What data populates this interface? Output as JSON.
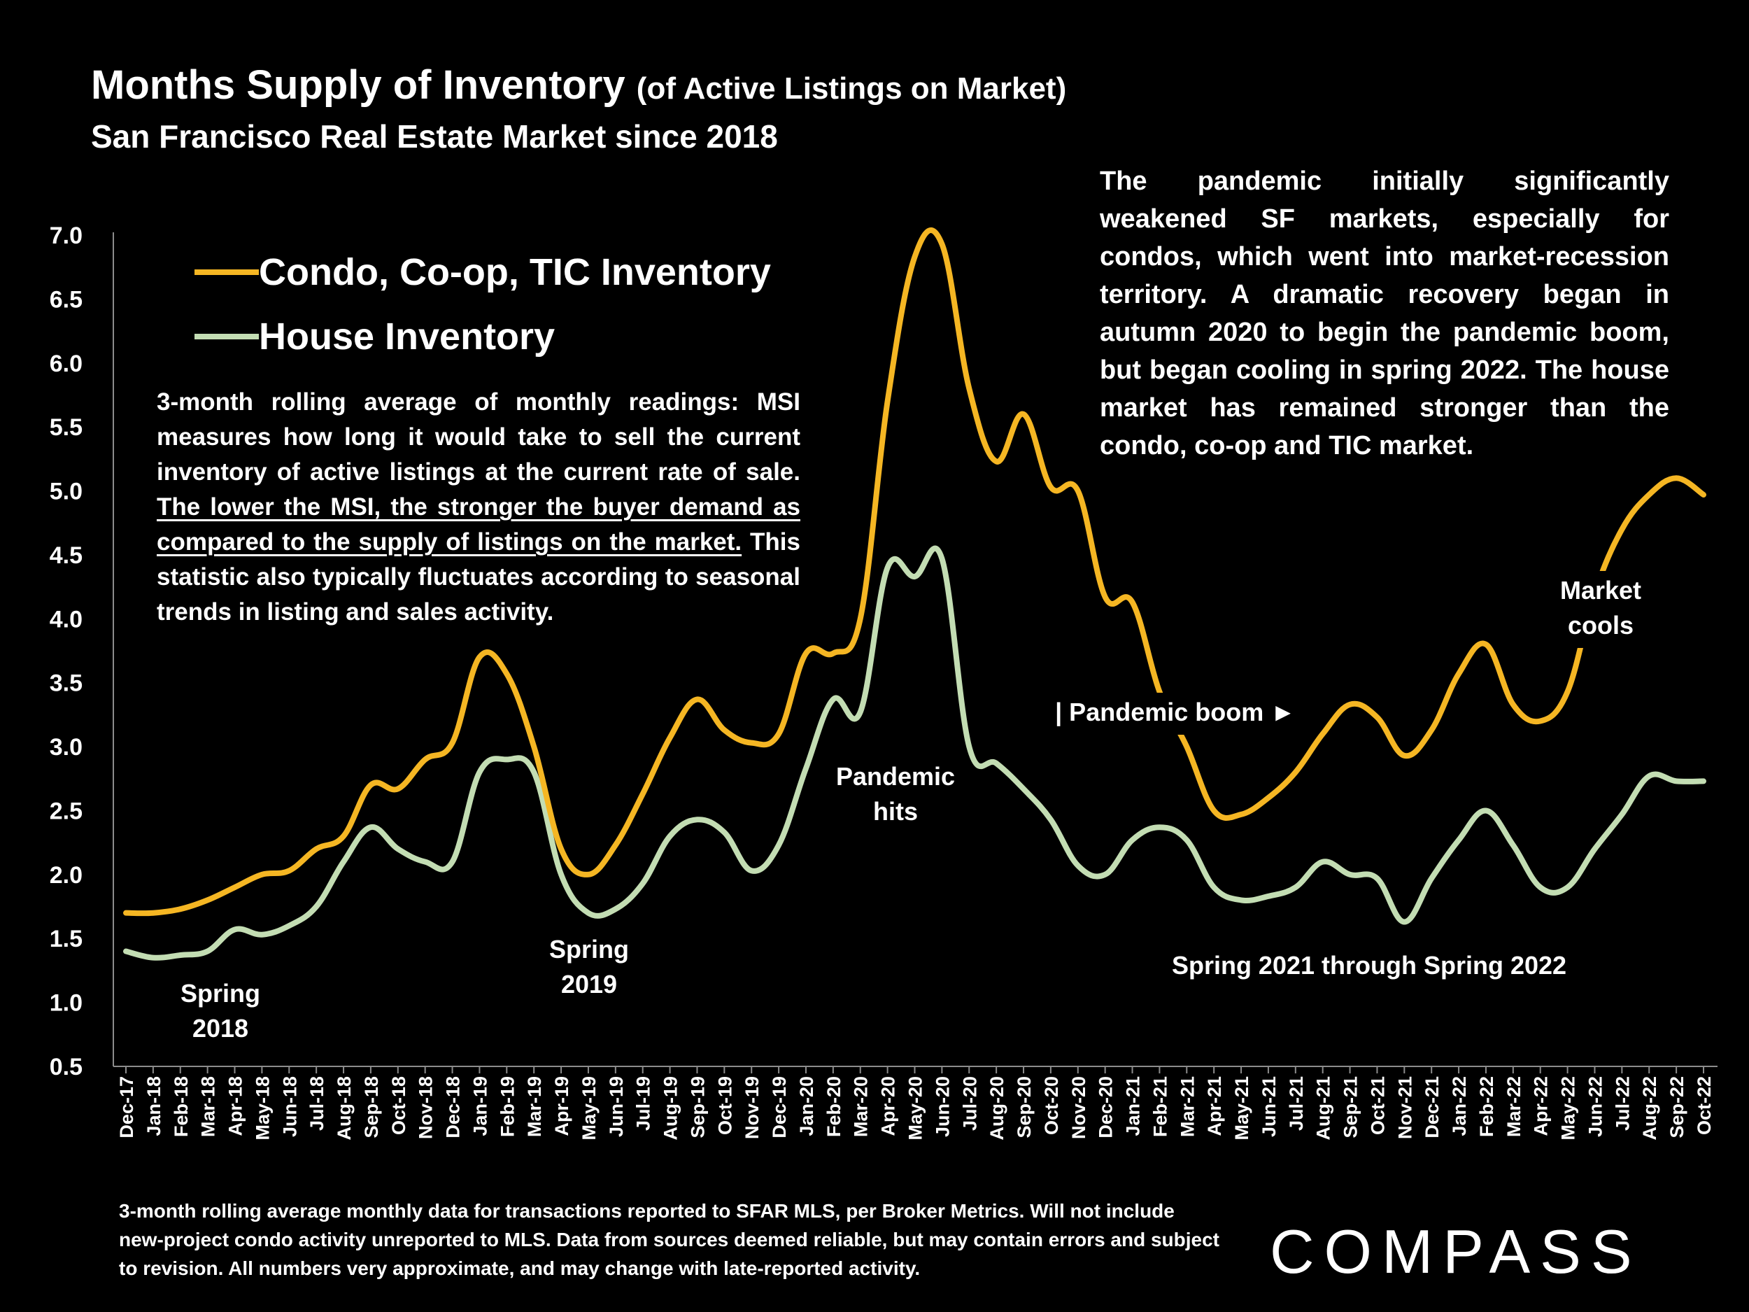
{
  "title": {
    "main": "Months Supply of Inventory",
    "paren": "(of Active Listings on Market)",
    "subtitle": "San Francisco Real Estate Market since 2018"
  },
  "legend": [
    {
      "label": "Condo, Co-op, TIC Inventory",
      "color": "#F5B623"
    },
    {
      "label": "House Inventory",
      "color": "#C3DDB3"
    }
  ],
  "explanation": {
    "part1": "3-month rolling average of monthly readings: MSI measures how long it would take to sell the current inventory of active listings at the current rate of sale.",
    "underlined": "The lower the MSI, the stronger the buyer demand as compared to the supply of listings on the market.",
    "part2": "This statistic also typically fluctuates according to seasonal trends in listing and sales activity."
  },
  "pandemic_note": "The pandemic initially significantly weakened SF markets, especially for condos, which went into market-recession territory. A dramatic recovery began in autumn 2020 to begin the pandemic boom, but began cooling in spring 2022. The house market has remained stronger than the condo, co-op and TIC market.",
  "footnote": "3-month rolling average monthly data for transactions reported to SFAR MLS, per Broker Metrics. Will not include new-project condo activity unreported to MLS. Data from sources deemed reliable, but may contain errors and subject to revision. All numbers very approximate, and may change with late-reported activity.",
  "logo": "COMPASS",
  "chart_data": {
    "type": "line",
    "title": "Months Supply of Inventory (of Active Listings on Market)",
    "xlabel": "",
    "ylabel": "",
    "ylim": [
      0.5,
      7.0
    ],
    "yticks": [
      "0.5",
      "1.0",
      "1.5",
      "2.0",
      "2.5",
      "3.0",
      "3.5",
      "4.0",
      "4.5",
      "5.0",
      "5.5",
      "6.0",
      "6.5",
      "7.0"
    ],
    "grid": false,
    "legend_position": "top-left",
    "categories": [
      "Dec-17",
      "Jan-18",
      "Feb-18",
      "Mar-18",
      "Apr-18",
      "May-18",
      "Jun-18",
      "Jul-18",
      "Aug-18",
      "Sep-18",
      "Oct-18",
      "Nov-18",
      "Dec-18",
      "Jan-19",
      "Feb-19",
      "Mar-19",
      "Apr-19",
      "May-19",
      "Jun-19",
      "Jul-19",
      "Aug-19",
      "Sep-19",
      "Oct-19",
      "Nov-19",
      "Dec-19",
      "Jan-20",
      "Feb-20",
      "Mar-20",
      "Apr-20",
      "May-20",
      "Jun-20",
      "Jul-20",
      "Aug-20",
      "Sep-20",
      "Oct-20",
      "Nov-20",
      "Dec-20",
      "Jan-21",
      "Feb-21",
      "Mar-21",
      "Apr-21",
      "May-21",
      "Jun-21",
      "Jul-21",
      "Aug-21",
      "Sep-21",
      "Oct-21",
      "Nov-21",
      "Dec-21",
      "Jan-22",
      "Feb-22",
      "Mar-22",
      "Apr-22",
      "May-22",
      "Jun-22",
      "Jul-22",
      "Aug-22",
      "Sep-22",
      "Oct-22"
    ],
    "series": [
      {
        "name": "Condo, Co-op, TIC Inventory",
        "color": "#F5B623",
        "values": [
          1.7,
          1.7,
          1.73,
          1.8,
          1.9,
          2.0,
          2.03,
          2.2,
          2.3,
          2.7,
          2.67,
          2.9,
          3.03,
          3.7,
          3.57,
          3.0,
          2.2,
          2.0,
          2.23,
          2.63,
          3.07,
          3.37,
          3.13,
          3.03,
          3.1,
          3.73,
          3.73,
          4.0,
          5.7,
          6.83,
          6.93,
          5.8,
          5.23,
          5.6,
          5.03,
          5.0,
          4.17,
          4.13,
          3.43,
          3.0,
          2.5,
          2.47,
          2.6,
          2.8,
          3.1,
          3.33,
          3.23,
          2.93,
          3.13,
          3.57,
          3.8,
          3.33,
          3.2,
          3.43,
          4.2,
          4.7,
          4.97,
          5.1,
          4.97
        ]
      },
      {
        "name": "House Inventory",
        "color": "#C3DDB3",
        "values": [
          1.4,
          1.35,
          1.37,
          1.4,
          1.57,
          1.53,
          1.6,
          1.75,
          2.1,
          2.37,
          2.2,
          2.1,
          2.1,
          2.8,
          2.9,
          2.8,
          2.0,
          1.7,
          1.73,
          1.93,
          2.3,
          2.43,
          2.33,
          2.03,
          2.23,
          2.83,
          3.37,
          3.27,
          4.4,
          4.33,
          4.47,
          3.0,
          2.87,
          2.67,
          2.43,
          2.07,
          2.0,
          2.27,
          2.37,
          2.27,
          1.9,
          1.8,
          1.83,
          1.9,
          2.1,
          2.0,
          1.97,
          1.63,
          1.97,
          2.27,
          2.5,
          2.23,
          1.9,
          1.9,
          2.2,
          2.47,
          2.77,
          2.73,
          2.73
        ]
      }
    ],
    "annotations": [
      {
        "key": "spring2018",
        "text": "Spring 2018",
        "lines": [
          "Spring",
          "2018"
        ]
      },
      {
        "key": "spring2019",
        "text": "Spring 2019",
        "lines": [
          "Spring",
          "2019"
        ]
      },
      {
        "key": "pandemic_hits",
        "text": "Pandemic hits",
        "lines": [
          "Pandemic",
          "hits"
        ]
      },
      {
        "key": "pandemic_boom",
        "text": "| Pandemic boom ►",
        "lines": [
          "| Pandemic boom ►"
        ]
      },
      {
        "key": "spring2021",
        "text": "Spring 2021 through Spring 2022",
        "lines": [
          "Spring 2021 through Spring 2022"
        ]
      },
      {
        "key": "market_cools",
        "text": "Market cools",
        "lines": [
          "Market",
          "cools"
        ]
      }
    ]
  }
}
